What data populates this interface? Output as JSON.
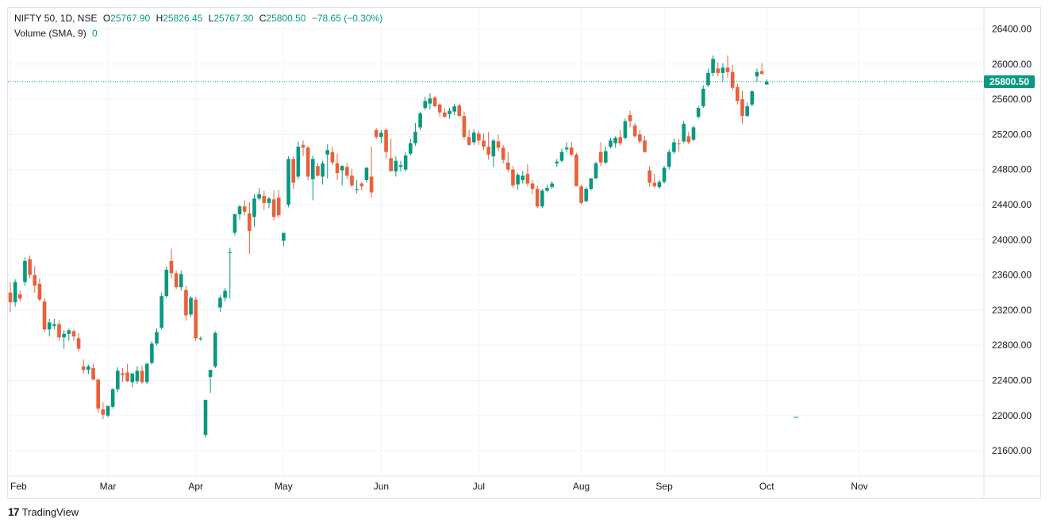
{
  "legend": {
    "symbol": "NIFTY 50, 1D, NSE",
    "o_label": "O",
    "o_value": "25767.90",
    "h_label": "H",
    "h_value": "25826.45",
    "l_label": "L",
    "l_value": "25767.30",
    "c_label": "C",
    "c_value": "25800.50",
    "change": "−78.65 (−0.30%)",
    "volume_label": "Volume (SMA, 9)",
    "volume_value": "0"
  },
  "price_tag": "25800.50",
  "brand": {
    "logo": "17",
    "name": "TradingView"
  },
  "colors": {
    "up": "#089981",
    "down": "#f23645",
    "down_candle": "#e8613c",
    "grid": "#f0f3fa",
    "text": "#131722"
  },
  "chart_data": {
    "type": "candlestick",
    "last_close": 25800.5,
    "ylim": [
      21400,
      26700
    ],
    "y_ticks": [
      "26400.00",
      "26000.00",
      "25600.00",
      "25200.00",
      "24800.00",
      "24400.00",
      "24000.00",
      "23600.00",
      "23200.00",
      "22800.00",
      "22400.00",
      "22000.00",
      "21600.00"
    ],
    "x_ticks": [
      {
        "label": "Feb",
        "index": 0
      },
      {
        "label": "Mar",
        "index": 20
      },
      {
        "label": "Apr",
        "index": 38
      },
      {
        "label": "May",
        "index": 56
      },
      {
        "label": "Jun",
        "index": 76
      },
      {
        "label": "Jul",
        "index": 96
      },
      {
        "label": "Aug",
        "index": 117
      },
      {
        "label": "Sep",
        "index": 134
      },
      {
        "label": "Oct",
        "index": 155
      },
      {
        "label": "Nov",
        "index": 174
      }
    ],
    "volume_marker_index": 161,
    "candles": [
      [
        23400,
        23520,
        23180,
        23290
      ],
      [
        23290,
        23550,
        23240,
        23520
      ],
      [
        23380,
        23420,
        23300,
        23330
      ],
      [
        23520,
        23800,
        23480,
        23760
      ],
      [
        23780,
        23820,
        23560,
        23600
      ],
      [
        23600,
        23700,
        23400,
        23480
      ],
      [
        23500,
        23560,
        23300,
        23320
      ],
      [
        23300,
        23340,
        22950,
        22980
      ],
      [
        22980,
        23100,
        22900,
        23060
      ],
      [
        23020,
        23100,
        22980,
        23040
      ],
      [
        23040,
        23080,
        22850,
        22890
      ],
      [
        22890,
        22970,
        22760,
        22930
      ],
      [
        22930,
        22990,
        22850,
        22970
      ],
      [
        22960,
        22980,
        22850,
        22900
      ],
      [
        22880,
        22940,
        22730,
        22760
      ],
      [
        22560,
        22640,
        22480,
        22520
      ],
      [
        22520,
        22580,
        22470,
        22560
      ],
      [
        22540,
        22590,
        22400,
        22410
      ],
      [
        22410,
        22420,
        22030,
        22080
      ],
      [
        22070,
        22150,
        21960,
        22010
      ],
      [
        22000,
        22110,
        21980,
        22110
      ],
      [
        22100,
        22310,
        22080,
        22300
      ],
      [
        22300,
        22550,
        22270,
        22510
      ],
      [
        22480,
        22540,
        22380,
        22460
      ],
      [
        22490,
        22590,
        22380,
        22390
      ],
      [
        22380,
        22450,
        22320,
        22480
      ],
      [
        22390,
        22560,
        22360,
        22510
      ],
      [
        22510,
        22570,
        22360,
        22380
      ],
      [
        22380,
        22600,
        22360,
        22590
      ],
      [
        22600,
        22850,
        22580,
        22820
      ],
      [
        22820,
        22990,
        22800,
        22950
      ],
      [
        23000,
        23400,
        22980,
        23360
      ],
      [
        23360,
        23700,
        23340,
        23660
      ],
      [
        23760,
        23900,
        23560,
        23620
      ],
      [
        23620,
        23650,
        23440,
        23460
      ],
      [
        23460,
        23650,
        23420,
        23610
      ],
      [
        23430,
        23480,
        23080,
        23140
      ],
      [
        23150,
        23360,
        23120,
        23340
      ],
      [
        23320,
        23350,
        22850,
        22880
      ],
      [
        22870,
        22900,
        22850,
        22880
      ],
      [
        21780,
        22180,
        21750,
        22180
      ],
      [
        22440,
        22520,
        22260,
        22520
      ],
      [
        22560,
        22960,
        22540,
        22940
      ],
      [
        23230,
        23370,
        23180,
        23340
      ],
      [
        23340,
        23450,
        23300,
        23420
      ],
      [
        23860,
        23910,
        23330,
        23860
      ],
      [
        24080,
        24300,
        24050,
        24290
      ],
      [
        24290,
        24400,
        24230,
        24380
      ],
      [
        24380,
        24450,
        24280,
        24320
      ],
      [
        24300,
        24430,
        23840,
        24100
      ],
      [
        24260,
        24520,
        24150,
        24470
      ],
      [
        24470,
        24590,
        24450,
        24520
      ],
      [
        24500,
        24560,
        24340,
        24420
      ],
      [
        24420,
        24490,
        24360,
        24470
      ],
      [
        24460,
        24560,
        24220,
        24260
      ],
      [
        24480,
        24570,
        24250,
        24280
      ],
      [
        23990,
        24070,
        23930,
        24080
      ],
      [
        24400,
        24950,
        24370,
        24920
      ],
      [
        24920,
        24950,
        24580,
        24650
      ],
      [
        24720,
        25120,
        24690,
        25060
      ],
      [
        25080,
        25130,
        24950,
        25050
      ],
      [
        25050,
        25070,
        24680,
        24720
      ],
      [
        24690,
        24960,
        24450,
        24920
      ],
      [
        24840,
        24870,
        24720,
        24730
      ],
      [
        24720,
        24900,
        24630,
        24870
      ],
      [
        24970,
        25090,
        24700,
        25020
      ],
      [
        25000,
        25060,
        24850,
        24880
      ],
      [
        24870,
        24980,
        24680,
        24760
      ],
      [
        24790,
        24850,
        24620,
        24840
      ],
      [
        24830,
        24870,
        24690,
        24730
      ],
      [
        24730,
        24810,
        24600,
        24620
      ],
      [
        24580,
        24680,
        24530,
        24580
      ],
      [
        24640,
        24660,
        24560,
        24610
      ],
      [
        24680,
        24830,
        24650,
        24820
      ],
      [
        24720,
        25060,
        24480,
        24540
      ],
      [
        25250,
        25270,
        25150,
        25170
      ],
      [
        25170,
        25250,
        25100,
        25220
      ],
      [
        25250,
        25270,
        24930,
        25000
      ],
      [
        24930,
        25150,
        24780,
        24780
      ],
      [
        24780,
        24950,
        24720,
        24900
      ],
      [
        24830,
        24900,
        24780,
        24850
      ],
      [
        24800,
        25000,
        24780,
        24960
      ],
      [
        24980,
        25150,
        24960,
        25100
      ],
      [
        25100,
        25330,
        25070,
        25230
      ],
      [
        25280,
        25460,
        25250,
        25440
      ],
      [
        25500,
        25630,
        25480,
        25580
      ],
      [
        25550,
        25670,
        25480,
        25610
      ],
      [
        25620,
        25640,
        25510,
        25520
      ],
      [
        25540,
        25550,
        25400,
        25450
      ],
      [
        25450,
        25500,
        25390,
        25400
      ],
      [
        25430,
        25500,
        25380,
        25470
      ],
      [
        25460,
        25550,
        25420,
        25520
      ],
      [
        25530,
        25550,
        25400,
        25410
      ],
      [
        25410,
        25460,
        25140,
        25170
      ],
      [
        25170,
        25250,
        25070,
        25080
      ],
      [
        25110,
        25260,
        25080,
        25220
      ],
      [
        25210,
        25240,
        25080,
        25130
      ],
      [
        25130,
        25210,
        25020,
        25060
      ],
      [
        25060,
        25230,
        24910,
        24970
      ],
      [
        24950,
        25150,
        24830,
        25130
      ],
      [
        25120,
        25200,
        25010,
        25050
      ],
      [
        25050,
        25080,
        24870,
        24910
      ],
      [
        24880,
        25000,
        24770,
        24800
      ],
      [
        24800,
        24840,
        24590,
        24620
      ],
      [
        24630,
        24760,
        24570,
        24740
      ],
      [
        24680,
        24780,
        24640,
        24730
      ],
      [
        24750,
        24860,
        24610,
        24640
      ],
      [
        24640,
        24680,
        24520,
        24580
      ],
      [
        24580,
        24620,
        24360,
        24380
      ],
      [
        24380,
        24580,
        24360,
        24560
      ],
      [
        24560,
        24630,
        24540,
        24590
      ],
      [
        24600,
        24670,
        24580,
        24640
      ],
      [
        24870,
        24920,
        24830,
        24890
      ],
      [
        24900,
        25040,
        24880,
        25000
      ],
      [
        25030,
        25110,
        25000,
        25050
      ],
      [
        25050,
        25110,
        24950,
        24970
      ],
      [
        24970,
        24990,
        24610,
        24610
      ],
      [
        24610,
        24630,
        24400,
        24420
      ],
      [
        24440,
        24600,
        24430,
        24580
      ],
      [
        24580,
        24700,
        24560,
        24700
      ],
      [
        24700,
        24890,
        24690,
        24870
      ],
      [
        25000,
        25110,
        24840,
        24880
      ],
      [
        24880,
        25060,
        24860,
        25010
      ],
      [
        25060,
        25160,
        25040,
        25130
      ],
      [
        25100,
        25180,
        25050,
        25160
      ],
      [
        25170,
        25250,
        25070,
        25100
      ],
      [
        25160,
        25380,
        25140,
        25350
      ],
      [
        25420,
        25470,
        25280,
        25350
      ],
      [
        25300,
        25330,
        25160,
        25180
      ],
      [
        25200,
        25250,
        25100,
        25120
      ],
      [
        25130,
        25180,
        24990,
        25000
      ],
      [
        24790,
        24840,
        24600,
        24650
      ],
      [
        24650,
        24750,
        24590,
        24610
      ],
      [
        24600,
        24680,
        24580,
        24660
      ],
      [
        24660,
        24840,
        24640,
        24820
      ],
      [
        24830,
        25030,
        24800,
        25000
      ],
      [
        25000,
        25150,
        24980,
        25110
      ],
      [
        25100,
        25150,
        25000,
        25090
      ],
      [
        25120,
        25350,
        25100,
        25320
      ],
      [
        25180,
        25230,
        25090,
        25110
      ],
      [
        25140,
        25300,
        25120,
        25280
      ],
      [
        25400,
        25520,
        25380,
        25500
      ],
      [
        25520,
        25760,
        25500,
        25720
      ],
      [
        25760,
        25950,
        25740,
        25900
      ],
      [
        25900,
        26100,
        25860,
        26060
      ],
      [
        25950,
        26020,
        25860,
        25900
      ],
      [
        25900,
        26010,
        25800,
        25960
      ],
      [
        25960,
        26100,
        25840,
        25910
      ],
      [
        25910,
        25990,
        25700,
        25730
      ],
      [
        25740,
        25780,
        25540,
        25580
      ],
      [
        25600,
        25700,
        25320,
        25410
      ],
      [
        25410,
        25560,
        25400,
        25520
      ],
      [
        25540,
        25700,
        25520,
        25690
      ],
      [
        25860,
        25950,
        25800,
        25910
      ],
      [
        25920,
        26010,
        25880,
        25890
      ],
      [
        25767.9,
        25826.45,
        25767.3,
        25800.5
      ]
    ]
  }
}
